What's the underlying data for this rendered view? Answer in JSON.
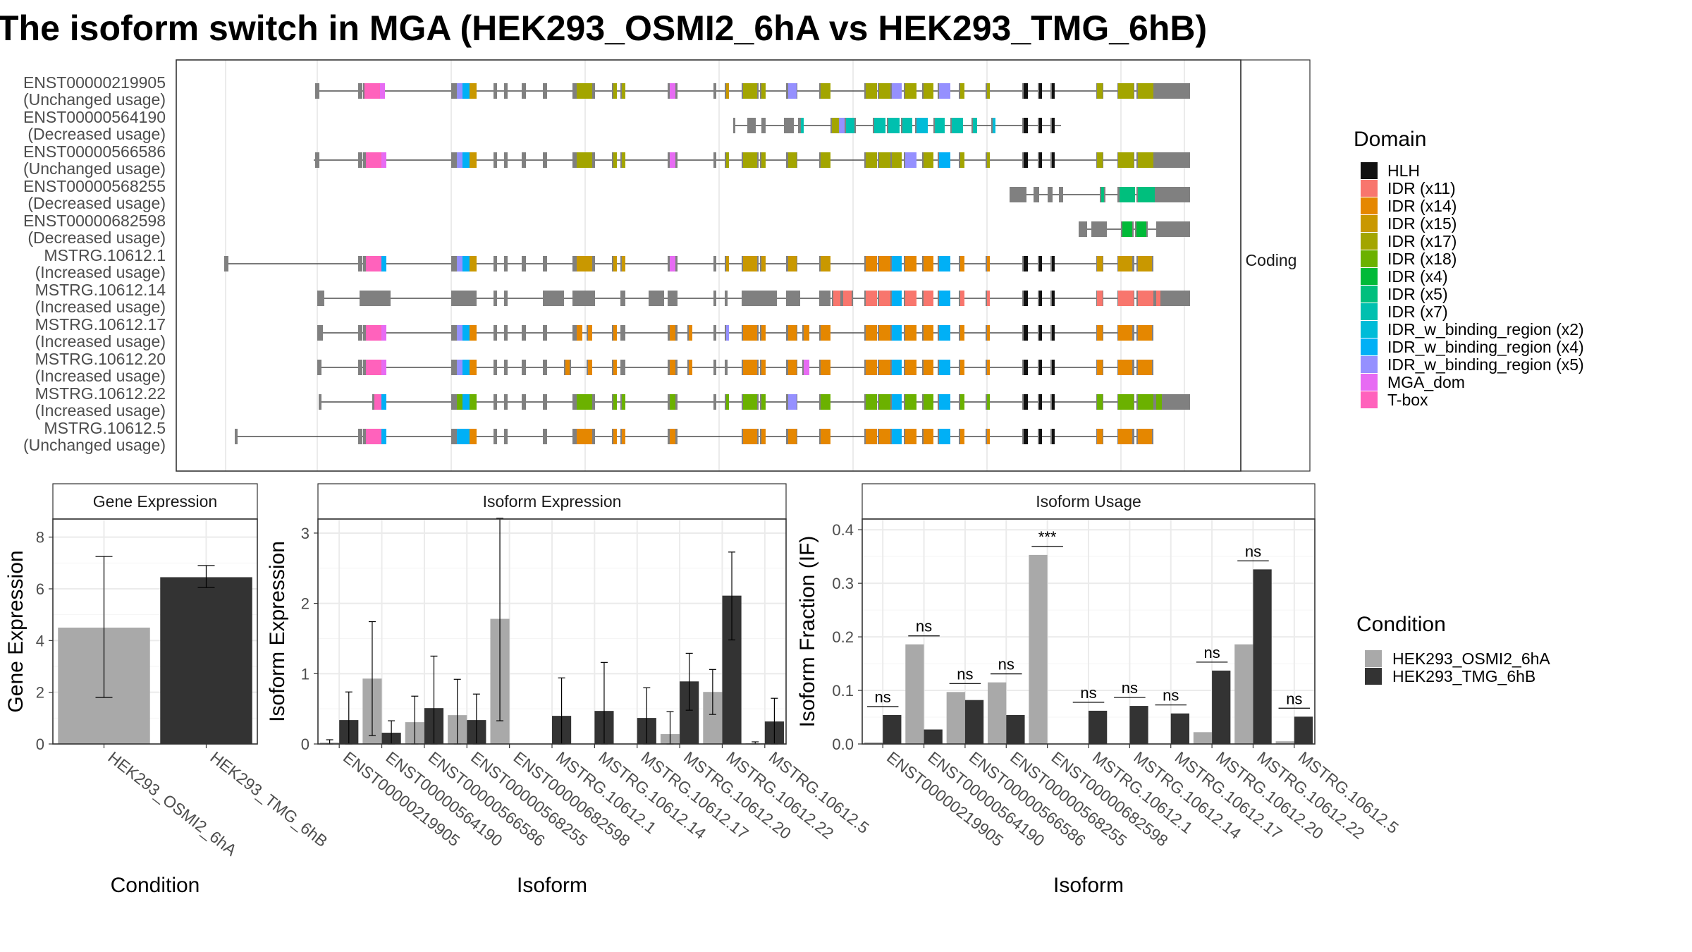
{
  "title": "The isoform switch in MGA (HEK293_OSMI2_6hA vs HEK293_TMG_6hB)",
  "colors": {
    "domains": {
      "HLH": "#111111",
      "IDR (x11)": "#F8766D",
      "IDR (x14)": "#E58700",
      "IDR (x15)": "#C99800",
      "IDR (x17)": "#A3A500",
      "IDR (x18)": "#6BB100",
      "IDR (x4)": "#00BA38",
      "IDR (x5)": "#00BF7D",
      "IDR (x7)": "#00C0AF",
      "IDR_w_binding_region (x2)": "#00BCD8",
      "IDR_w_binding_region (x4)": "#00B0F6",
      "IDR_w_binding_region (x5)": "#9590FF",
      "MGA_dom": "#E76BF3",
      "T-box": "#FF62BC"
    },
    "exon": "#808080",
    "osmi": "#A9A9A9",
    "tmg": "#333333"
  },
  "structure": {
    "strip_label": "Coding",
    "isoforms": [
      {
        "id": "ENST00000219905",
        "usage": "(Unchanged usage)"
      },
      {
        "id": "ENST00000564190",
        "usage": "(Decreased usage)"
      },
      {
        "id": "ENST00000566586",
        "usage": "(Unchanged usage)"
      },
      {
        "id": "ENST00000568255",
        "usage": "(Decreased usage)"
      },
      {
        "id": "ENST00000682598",
        "usage": "(Decreased usage)"
      },
      {
        "id": "MSTRG.10612.1",
        "usage": "(Increased usage)"
      },
      {
        "id": "MSTRG.10612.14",
        "usage": "(Increased usage)"
      },
      {
        "id": "MSTRG.10612.17",
        "usage": "(Increased usage)"
      },
      {
        "id": "MSTRG.10612.20",
        "usage": "(Increased usage)"
      },
      {
        "id": "MSTRG.10612.22",
        "usage": "(Increased usage)"
      },
      {
        "id": "MSTRG.10612.5",
        "usage": "(Unchanged usage)"
      }
    ]
  },
  "legend_domain": {
    "title": "Domain",
    "items": [
      "HLH",
      "IDR (x11)",
      "IDR (x14)",
      "IDR (x15)",
      "IDR (x17)",
      "IDR (x18)",
      "IDR (x4)",
      "IDR (x5)",
      "IDR (x7)",
      "IDR_w_binding_region (x2)",
      "IDR_w_binding_region (x4)",
      "IDR_w_binding_region (x5)",
      "MGA_dom",
      "T-box"
    ]
  },
  "legend_condition": {
    "title": "Condition",
    "items": [
      "HEK293_OSMI2_6hA",
      "HEK293_TMG_6hB"
    ]
  },
  "chart_data": [
    {
      "type": "bar",
      "title": "Gene Expression",
      "xlabel": "Condition",
      "ylabel": "Gene Expression",
      "ylim": [
        0,
        8.7
      ],
      "yticks": [
        0,
        2,
        4,
        6,
        8
      ],
      "categories": [
        "HEK293_OSMI2_6hA",
        "HEK293_TMG_6hB"
      ],
      "values": [
        4.5,
        6.45
      ],
      "err_low": [
        1.8,
        6.05
      ],
      "err_high": [
        7.25,
        6.9
      ]
    },
    {
      "type": "bar",
      "title": "Isoform Expression",
      "xlabel": "Isoform",
      "ylabel": "Isoform Expression",
      "ylim": [
        0,
        3.2
      ],
      "yticks": [
        0,
        1,
        2,
        3
      ],
      "categories": [
        "ENST00000219905",
        "ENST00000564190",
        "ENST00000566586",
        "ENST00000568255",
        "ENST00000682598",
        "MSTRG.10612.1",
        "MSTRG.10612.14",
        "MSTRG.10612.17",
        "MSTRG.10612.20",
        "MSTRG.10612.22",
        "MSTRG.10612.5"
      ],
      "series": [
        {
          "name": "HEK293_OSMI2_6hA",
          "values": [
            0.02,
            0.93,
            0.31,
            0.41,
            1.78,
            0.0,
            0.0,
            0.0,
            0.14,
            0.74,
            0.01
          ],
          "err_low": [
            0.0,
            0.12,
            0.0,
            0.0,
            0.33,
            0.0,
            0.0,
            0.0,
            0.0,
            0.42,
            0.0
          ],
          "err_high": [
            0.06,
            1.74,
            0.68,
            0.92,
            3.21,
            0.0,
            0.0,
            0.0,
            0.46,
            1.06,
            0.03
          ]
        },
        {
          "name": "HEK293_TMG_6hB",
          "values": [
            0.34,
            0.16,
            0.51,
            0.34,
            0.0,
            0.4,
            0.47,
            0.37,
            0.89,
            2.11,
            0.32
          ],
          "err_low": [
            0.0,
            0.0,
            0.0,
            0.0,
            0.0,
            0.0,
            0.0,
            0.0,
            0.48,
            1.48,
            0.0
          ],
          "err_high": [
            0.74,
            0.33,
            1.25,
            0.71,
            0.0,
            0.94,
            1.16,
            0.8,
            1.29,
            2.73,
            0.65
          ]
        }
      ]
    },
    {
      "type": "bar",
      "title": "Isoform Usage",
      "xlabel": "Isoform",
      "ylabel": "Isoform Fraction (IF)",
      "ylim": [
        0,
        0.42
      ],
      "yticks": [
        0.0,
        0.1,
        0.2,
        0.3,
        0.4
      ],
      "categories": [
        "ENST00000219905",
        "ENST00000564190",
        "ENST00000566586",
        "ENST00000568255",
        "ENST00000682598",
        "MSTRG.10612.1",
        "MSTRG.10612.14",
        "MSTRG.10612.17",
        "MSTRG.10612.20",
        "MSTRG.10612.22",
        "MSTRG.10612.5"
      ],
      "series": [
        {
          "name": "HEK293_OSMI2_6hA",
          "values": [
            0.003,
            0.186,
            0.097,
            0.115,
            0.353,
            0.0,
            0.0,
            0.0,
            0.022,
            0.186,
            0.005
          ]
        },
        {
          "name": "HEK293_TMG_6hB",
          "values": [
            0.054,
            0.027,
            0.082,
            0.054,
            0.0,
            0.062,
            0.071,
            0.057,
            0.137,
            0.326,
            0.051
          ]
        }
      ],
      "significance": [
        "ns",
        "ns",
        "ns",
        "ns",
        "***",
        "ns",
        "ns",
        "ns",
        "ns",
        "ns",
        "ns"
      ]
    }
  ]
}
